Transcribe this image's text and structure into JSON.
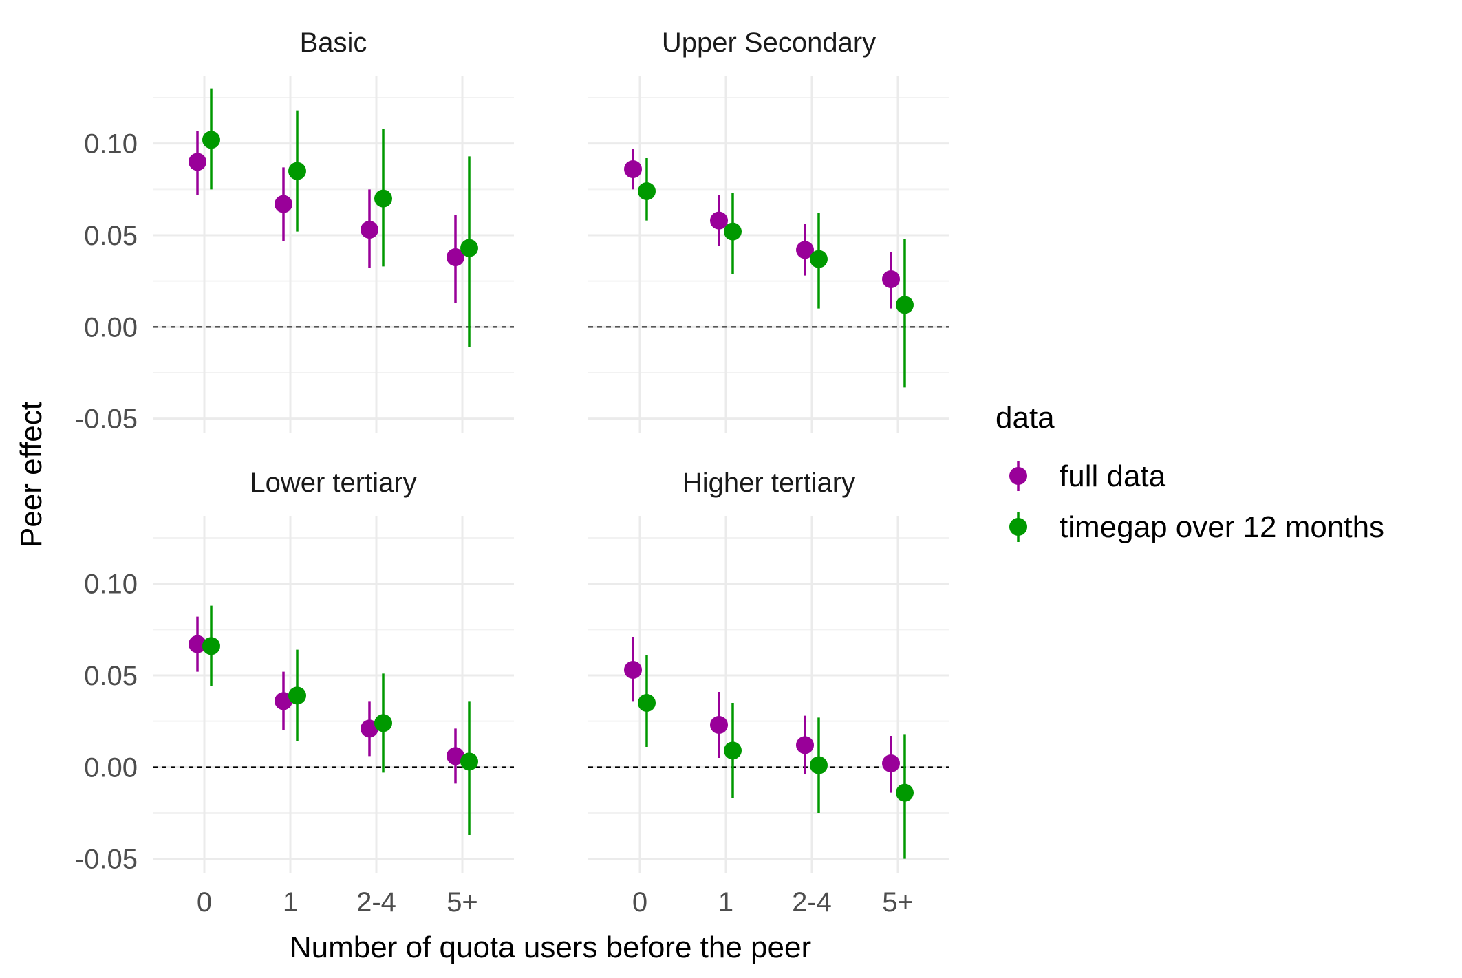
{
  "chart_data": {
    "type": "scatter",
    "subtype": "pointrange-facets",
    "xlabel": "Number of quota users before the peer",
    "ylabel": "Peer effect",
    "categories": [
      "0",
      "1",
      "2-4",
      "5+"
    ],
    "ylim": [
      -0.058,
      0.137
    ],
    "y_ticks": [
      -0.05,
      0.0,
      0.05,
      0.1
    ],
    "y_tick_labels": [
      "-0.05",
      "0.00",
      "0.05",
      "0.10"
    ],
    "reference_line": {
      "y": 0,
      "style": "dashed"
    },
    "grid": true,
    "legend": {
      "title": "data",
      "position": "right",
      "entries": [
        {
          "label": "full data",
          "color": "#990099"
        },
        {
          "label": "timegap over 12 months",
          "color": "#009900"
        }
      ]
    },
    "facets": [
      {
        "title": "Basic",
        "series": [
          {
            "name": "full data",
            "color": "#990099",
            "values": [
              0.09,
              0.067,
              0.053,
              0.038
            ],
            "lower": [
              0.072,
              0.047,
              0.032,
              0.013
            ],
            "upper": [
              0.107,
              0.087,
              0.075,
              0.061
            ]
          },
          {
            "name": "timegap over 12 months",
            "color": "#009900",
            "values": [
              0.102,
              0.085,
              0.07,
              0.043
            ],
            "lower": [
              0.075,
              0.052,
              0.033,
              -0.011
            ],
            "upper": [
              0.13,
              0.118,
              0.108,
              0.093
            ]
          }
        ]
      },
      {
        "title": "Upper Secondary",
        "series": [
          {
            "name": "full data",
            "color": "#990099",
            "values": [
              0.086,
              0.058,
              0.042,
              0.026
            ],
            "lower": [
              0.075,
              0.044,
              0.028,
              0.01
            ],
            "upper": [
              0.097,
              0.072,
              0.056,
              0.041
            ]
          },
          {
            "name": "timegap over 12 months",
            "color": "#009900",
            "values": [
              0.074,
              0.052,
              0.037,
              0.012
            ],
            "lower": [
              0.058,
              0.029,
              0.01,
              -0.033
            ],
            "upper": [
              0.092,
              0.073,
              0.062,
              0.048
            ]
          }
        ]
      },
      {
        "title": "Lower tertiary",
        "series": [
          {
            "name": "full data",
            "color": "#990099",
            "values": [
              0.067,
              0.036,
              0.021,
              0.006
            ],
            "lower": [
              0.052,
              0.02,
              0.006,
              -0.009
            ],
            "upper": [
              0.082,
              0.052,
              0.036,
              0.021
            ]
          },
          {
            "name": "timegap over 12 months",
            "color": "#009900",
            "values": [
              0.066,
              0.039,
              0.024,
              0.003
            ],
            "lower": [
              0.044,
              0.014,
              -0.003,
              -0.037
            ],
            "upper": [
              0.088,
              0.064,
              0.051,
              0.036
            ]
          }
        ]
      },
      {
        "title": "Higher tertiary",
        "series": [
          {
            "name": "full data",
            "color": "#990099",
            "values": [
              0.053,
              0.023,
              0.012,
              0.002
            ],
            "lower": [
              0.036,
              0.005,
              -0.004,
              -0.014
            ],
            "upper": [
              0.071,
              0.041,
              0.028,
              0.017
            ]
          },
          {
            "name": "timegap over 12 months",
            "color": "#009900",
            "values": [
              0.035,
              0.009,
              0.001,
              -0.014
            ],
            "lower": [
              0.011,
              -0.017,
              -0.025,
              -0.05
            ],
            "upper": [
              0.061,
              0.035,
              0.027,
              0.018
            ]
          }
        ]
      }
    ]
  }
}
